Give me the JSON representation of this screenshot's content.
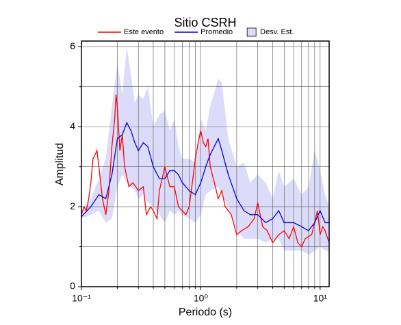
{
  "chart_data": {
    "type": "line",
    "title": "Sitio CSRH",
    "xlabel": "Periodo (s)",
    "ylabel": "Amplitud",
    "xscale": "log",
    "xlim": [
      0.1,
      11.9
    ],
    "ylim": [
      0,
      6.14
    ],
    "xticks": [
      {
        "value": 0.1,
        "label": "10⁻¹"
      },
      {
        "value": 1,
        "label": "10⁰"
      },
      {
        "value": 10,
        "label": "10¹"
      }
    ],
    "xminor_ticks": [
      0.2,
      0.3,
      0.4,
      0.5,
      0.6,
      0.7,
      0.8,
      0.9,
      2,
      3,
      4,
      5,
      6,
      7,
      8,
      9
    ],
    "yticks": [
      0,
      2,
      4,
      6
    ],
    "yminor_ticks": [
      1,
      3,
      5
    ],
    "grid": true,
    "legend": "top",
    "band": {
      "name": "Desv. Est.",
      "color": "#dcdcfa",
      "x": [
        0.1,
        0.12,
        0.14,
        0.16,
        0.18,
        0.2,
        0.22,
        0.24,
        0.26,
        0.28,
        0.3,
        0.33,
        0.36,
        0.4,
        0.45,
        0.5,
        0.55,
        0.6,
        0.65,
        0.7,
        0.8,
        0.9,
        1.0,
        1.1,
        1.2,
        1.4,
        1.5,
        1.7,
        2.0,
        2.3,
        2.6,
        3.0,
        3.5,
        4.0,
        4.5,
        5.0,
        6.0,
        7.0,
        8.0,
        9.0,
        10.0,
        11.0,
        11.9
      ],
      "lower": [
        1.7,
        1.8,
        1.9,
        1.6,
        1.7,
        2.5,
        2.8,
        2.6,
        2.5,
        2.4,
        2.2,
        2.3,
        2.1,
        2.0,
        1.8,
        1.6,
        1.9,
        1.8,
        1.9,
        1.8,
        1.7,
        1.6,
        1.8,
        2.3,
        2.4,
        2.5,
        2.3,
        2.0,
        1.4,
        1.2,
        1.2,
        1.2,
        1.1,
        1.2,
        1.2,
        0.9,
        0.9,
        0.9,
        0.8,
        0.9,
        1.0,
        0.9,
        0.9
      ],
      "upper": [
        1.9,
        2.2,
        2.7,
        3.2,
        4.5,
        5.6,
        4.8,
        6.0,
        5.3,
        4.6,
        4.8,
        4.7,
        5.0,
        4.0,
        4.3,
        4.4,
        3.9,
        4.2,
        3.5,
        3.2,
        3.2,
        3.1,
        4.2,
        3.9,
        4.5,
        5.2,
        5.1,
        3.7,
        3.0,
        3.1,
        2.6,
        2.8,
        2.6,
        2.2,
        2.9,
        2.5,
        2.7,
        2.3,
        2.5,
        3.4,
        2.9,
        2.3,
        2.0
      ]
    },
    "series": [
      {
        "name": "Este evento",
        "color": "#ff0000",
        "x": [
          0.1,
          0.105,
          0.11,
          0.115,
          0.12,
          0.125,
          0.13,
          0.135,
          0.14,
          0.15,
          0.16,
          0.17,
          0.18,
          0.19,
          0.195,
          0.2,
          0.21,
          0.22,
          0.23,
          0.25,
          0.27,
          0.3,
          0.33,
          0.35,
          0.38,
          0.4,
          0.43,
          0.45,
          0.5,
          0.55,
          0.6,
          0.65,
          0.7,
          0.75,
          0.8,
          0.85,
          0.9,
          0.95,
          1.0,
          1.05,
          1.1,
          1.15,
          1.2,
          1.3,
          1.4,
          1.5,
          1.6,
          1.8,
          2.0,
          2.2,
          2.5,
          2.8,
          3.0,
          3.3,
          3.6,
          4.0,
          4.5,
          5.0,
          5.5,
          6.0,
          6.5,
          7.0,
          7.5,
          8.5,
          9.5,
          10.0,
          10.5,
          11.0,
          11.9
        ],
        "values": [
          1.8,
          2.0,
          1.9,
          2.2,
          2.6,
          3.2,
          3.3,
          3.4,
          3.0,
          2.2,
          1.8,
          2.4,
          3.5,
          4.2,
          4.8,
          4.5,
          3.4,
          3.8,
          3.0,
          2.5,
          2.6,
          2.4,
          2.5,
          1.8,
          2.0,
          1.9,
          1.7,
          2.4,
          3.0,
          2.5,
          2.5,
          2.0,
          1.9,
          1.8,
          2.0,
          2.6,
          3.2,
          3.6,
          3.9,
          3.6,
          3.5,
          3.7,
          3.0,
          2.6,
          2.2,
          2.4,
          2.0,
          1.8,
          1.3,
          1.4,
          1.5,
          1.7,
          2.1,
          1.5,
          1.4,
          1.1,
          1.3,
          1.4,
          1.2,
          1.5,
          1.1,
          1.0,
          1.2,
          1.3,
          1.9,
          1.3,
          1.5,
          1.4,
          1.1
        ]
      },
      {
        "name": "Promedio",
        "color": "#0000dd",
        "x": [
          0.1,
          0.12,
          0.14,
          0.16,
          0.18,
          0.2,
          0.22,
          0.24,
          0.26,
          0.28,
          0.3,
          0.33,
          0.36,
          0.4,
          0.45,
          0.5,
          0.55,
          0.6,
          0.65,
          0.7,
          0.8,
          0.9,
          1.0,
          1.1,
          1.2,
          1.4,
          1.5,
          1.7,
          2.0,
          2.3,
          2.6,
          3.0,
          3.5,
          4.0,
          4.5,
          5.0,
          6.0,
          7.0,
          8.0,
          9.0,
          10.0,
          11.0,
          11.9
        ],
        "values": [
          1.75,
          2.0,
          2.3,
          2.2,
          2.8,
          3.7,
          3.8,
          4.1,
          3.9,
          3.6,
          3.4,
          3.6,
          3.5,
          3.0,
          2.7,
          2.7,
          2.9,
          2.9,
          2.8,
          2.6,
          2.4,
          2.3,
          2.6,
          3.0,
          3.3,
          3.7,
          3.4,
          2.8,
          2.2,
          1.9,
          1.8,
          1.8,
          1.6,
          1.7,
          1.9,
          1.6,
          1.6,
          1.5,
          1.4,
          1.6,
          1.9,
          1.6,
          1.6
        ]
      }
    ]
  }
}
